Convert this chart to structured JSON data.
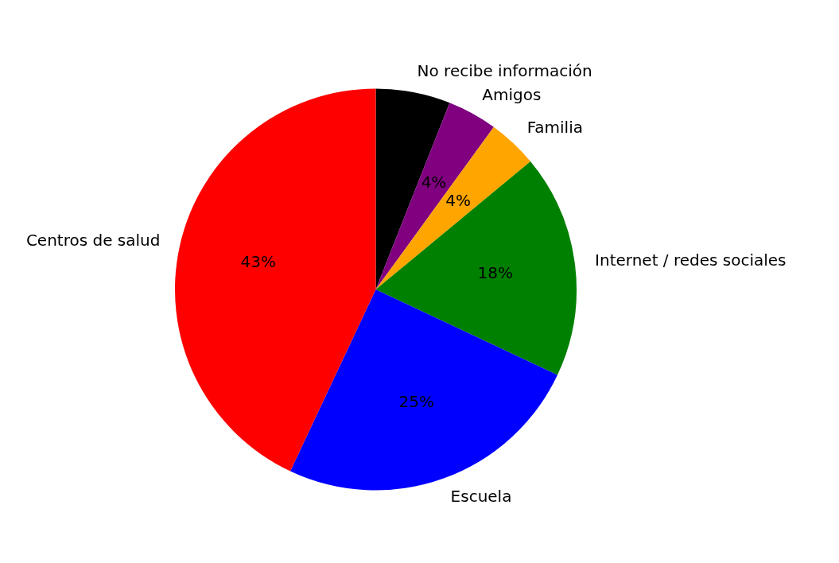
{
  "chart_data": {
    "type": "pie",
    "categories": [
      "No recibe información",
      "Amigos",
      "Familia",
      "Internet / redes sociales",
      "Escuela",
      "Centros de salud"
    ],
    "values": [
      6,
      4,
      4,
      18,
      25,
      43
    ],
    "colors": [
      "#000000",
      "#800080",
      "#ffa500",
      "#008000",
      "#0000ff",
      "#ff0000"
    ],
    "value_labels": [
      null,
      "4%",
      "4%",
      "18%",
      "25%",
      "43%"
    ],
    "legend": false
  }
}
